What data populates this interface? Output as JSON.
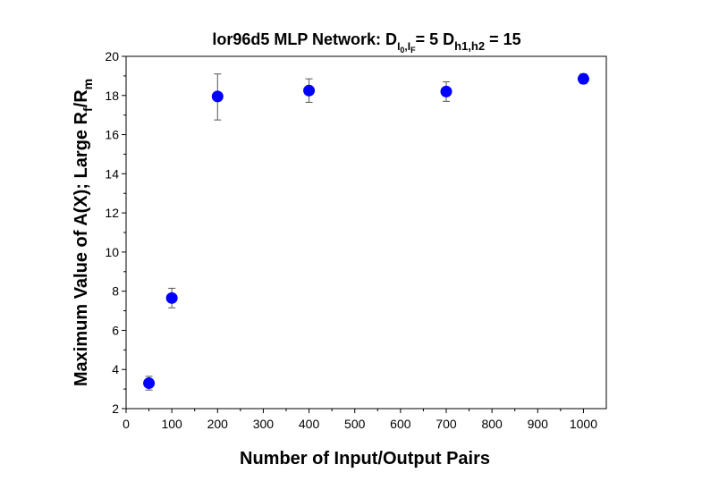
{
  "chart_data": {
    "type": "scatter",
    "title": {
      "prefix": "lor96d5    MLP Network: D",
      "sub1": "I",
      "subsub1": "0",
      "sub_comma": ",",
      "sub2": "I",
      "subsub2": "F",
      "mid": "= 5  D",
      "sub3": "h1,h2",
      "suffix": " = 15"
    },
    "xlabel": "Number of Input/Output Pairs",
    "ylabel": {
      "main": "Maximum Value of A(X);  Large R",
      "sub1": "f",
      "slash": "/R",
      "sub2": "m"
    },
    "xlim": [
      0,
      1050
    ],
    "ylim": [
      2,
      20
    ],
    "xticks": [
      0,
      100,
      200,
      300,
      400,
      500,
      600,
      700,
      800,
      900,
      1000
    ],
    "yticks": [
      2,
      4,
      6,
      8,
      10,
      12,
      14,
      16,
      18,
      20
    ],
    "grid": false,
    "marker_color": "#0000ff",
    "series": [
      {
        "x": [
          50,
          100,
          200,
          400,
          700,
          1000
        ],
        "y": [
          3.3,
          7.65,
          17.95,
          18.25,
          18.2,
          18.85
        ],
        "yerr_low": [
          0.35,
          0.5,
          1.2,
          0.6,
          0.5,
          0.25
        ],
        "yerr_high": [
          0.35,
          0.5,
          1.15,
          0.6,
          0.5,
          0.25
        ]
      }
    ]
  }
}
